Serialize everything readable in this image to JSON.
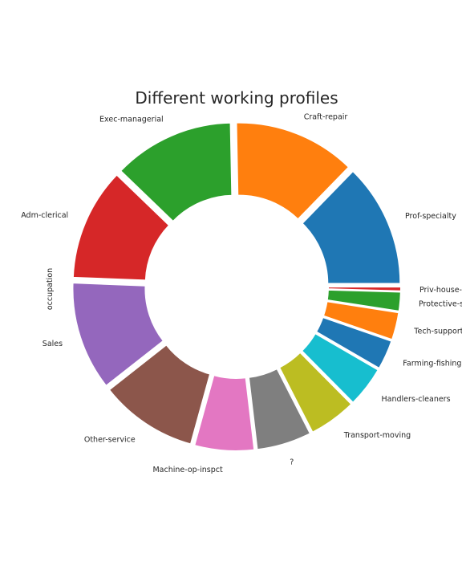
{
  "chart_data": {
    "type": "pie",
    "style": "donut",
    "title": "Different working profiles",
    "ylabel": "occupation",
    "start_angle_deg": 0,
    "direction": "counterclockwise",
    "slices": [
      {
        "label": "Prof-specialty",
        "value": 4140,
        "color": "#1f77b4"
      },
      {
        "label": "Craft-repair",
        "value": 4099,
        "color": "#ff7f0e"
      },
      {
        "label": "Exec-managerial",
        "value": 4066,
        "color": "#2ca02c"
      },
      {
        "label": "Adm-clerical",
        "value": 3770,
        "color": "#d62728"
      },
      {
        "label": "Sales",
        "value": 3650,
        "color": "#9467bd"
      },
      {
        "label": "Other-service",
        "value": 3295,
        "color": "#8c564b"
      },
      {
        "label": "Machine-op-inspct",
        "value": 2002,
        "color": "#e377c2"
      },
      {
        "label": "?",
        "value": 1843,
        "color": "#7f7f7f"
      },
      {
        "label": "Transport-moving",
        "value": 1597,
        "color": "#bcbd22"
      },
      {
        "label": "Handlers-cleaners",
        "value": 1370,
        "color": "#17becf"
      },
      {
        "label": "Farming-fishing",
        "value": 994,
        "color": "#1f77b4"
      },
      {
        "label": "Tech-support",
        "value": 928,
        "color": "#ff7f0e"
      },
      {
        "label": "Protective-serv",
        "value": 649,
        "color": "#2ca02c"
      },
      {
        "label": "Priv-house-serv",
        "value": 149,
        "color": "#d62728"
      }
    ]
  }
}
